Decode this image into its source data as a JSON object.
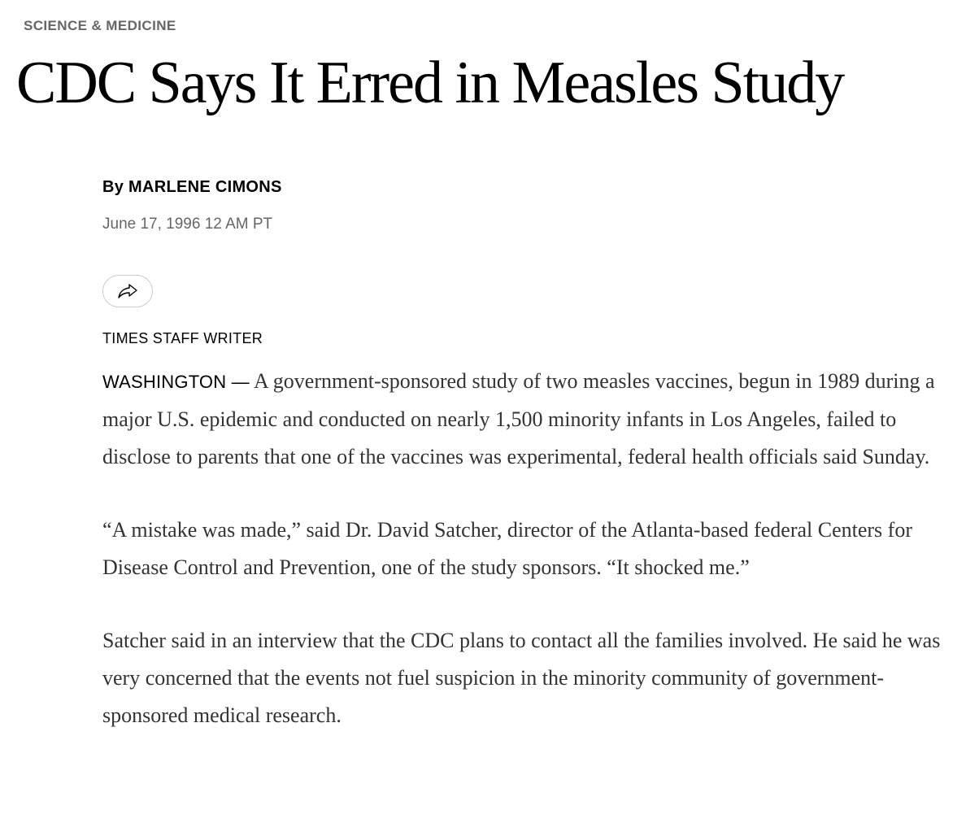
{
  "article": {
    "section": "SCIENCE & MEDICINE",
    "headline": "CDC Says It Erred in Measles Study",
    "byline_prefix": "By",
    "author": "MARLENE CIMONS",
    "date": "June 17, 1996 12 AM PT",
    "staff_label": "TIMES STAFF WRITER",
    "dateline_city": "WASHINGTON —",
    "paragraphs": [
      "A government-sponsored study of two measles vaccines, begun in 1989 during a major U.S. epidemic and conducted on nearly 1,500 minority infants in Los Angeles, failed to disclose to parents that one of the vaccines was experimental, federal health officials said Sunday.",
      "“A mistake was made,” said Dr. David Satcher, director of the Atlanta-based federal Centers for Disease Control and Prevention, one of the study sponsors. “It shocked me.”",
      "Satcher said in an interview that the CDC plans to contact all the families involved. He said he was very concerned that the events not fuel suspicion in the minority community of government-sponsored medical research."
    ]
  },
  "share": {
    "icon": "share-arrow-icon"
  }
}
